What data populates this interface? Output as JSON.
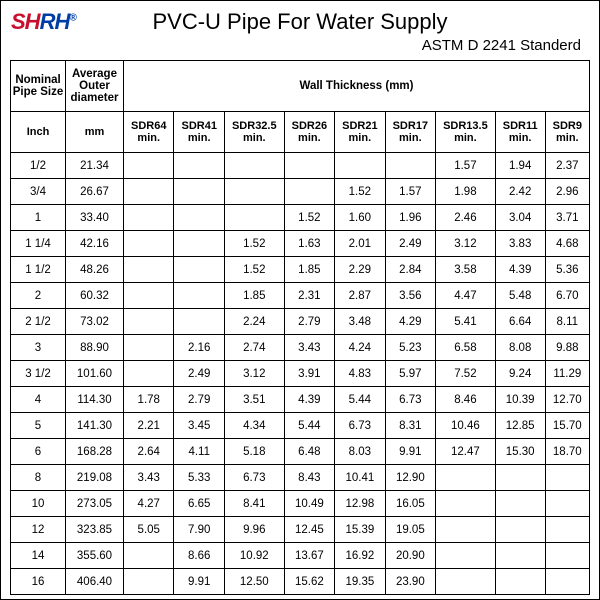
{
  "logo": {
    "text_left": "SH",
    "text_right": "RH",
    "reg": "®"
  },
  "title": "PVC-U Pipe For Water Supply",
  "subtitle": "ASTM D 2241 Standerd",
  "headers": {
    "nominal": "Nominal Pipe Size",
    "avg_outer": "Average Outer diameter",
    "wall": "Wall Thickness (mm)",
    "inch": "Inch",
    "mm": "mm",
    "sdr": [
      "SDR64 min.",
      "SDR41 min.",
      "SDR32.5 min.",
      "SDR26 min.",
      "SDR21 min.",
      "SDR17 min.",
      "SDR13.5 min.",
      "SDR11 min.",
      "SDR9 min."
    ]
  },
  "rows": [
    {
      "inch": "1/2",
      "mm": "21.34",
      "v": [
        "",
        "",
        "",
        "",
        "",
        "",
        "1.57",
        "1.94",
        "2.37"
      ]
    },
    {
      "inch": "3/4",
      "mm": "26.67",
      "v": [
        "",
        "",
        "",
        "",
        "1.52",
        "1.57",
        "1.98",
        "2.42",
        "2.96"
      ]
    },
    {
      "inch": "1",
      "mm": "33.40",
      "v": [
        "",
        "",
        "",
        "1.52",
        "1.60",
        "1.96",
        "2.46",
        "3.04",
        "3.71"
      ]
    },
    {
      "inch": "1 1/4",
      "mm": "42.16",
      "v": [
        "",
        "",
        "1.52",
        "1.63",
        "2.01",
        "2.49",
        "3.12",
        "3.83",
        "4.68"
      ]
    },
    {
      "inch": "1 1/2",
      "mm": "48.26",
      "v": [
        "",
        "",
        "1.52",
        "1.85",
        "2.29",
        "2.84",
        "3.58",
        "4.39",
        "5.36"
      ]
    },
    {
      "inch": "2",
      "mm": "60.32",
      "v": [
        "",
        "",
        "1.85",
        "2.31",
        "2.87",
        "3.56",
        "4.47",
        "5.48",
        "6.70"
      ]
    },
    {
      "inch": "2 1/2",
      "mm": "73.02",
      "v": [
        "",
        "",
        "2.24",
        "2.79",
        "3.48",
        "4.29",
        "5.41",
        "6.64",
        "8.11"
      ]
    },
    {
      "inch": "3",
      "mm": "88.90",
      "v": [
        "",
        "2.16",
        "2.74",
        "3.43",
        "4.24",
        "5.23",
        "6.58",
        "8.08",
        "9.88"
      ]
    },
    {
      "inch": "3 1/2",
      "mm": "101.60",
      "v": [
        "",
        "2.49",
        "3.12",
        "3.91",
        "4.83",
        "5.97",
        "7.52",
        "9.24",
        "11.29"
      ]
    },
    {
      "inch": "4",
      "mm": "114.30",
      "v": [
        "1.78",
        "2.79",
        "3.51",
        "4.39",
        "5.44",
        "6.73",
        "8.46",
        "10.39",
        "12.70"
      ]
    },
    {
      "inch": "5",
      "mm": "141.30",
      "v": [
        "2.21",
        "3.45",
        "4.34",
        "5.44",
        "6.73",
        "8.31",
        "10.46",
        "12.85",
        "15.70"
      ]
    },
    {
      "inch": "6",
      "mm": "168.28",
      "v": [
        "2.64",
        "4.11",
        "5.18",
        "6.48",
        "8.03",
        "9.91",
        "12.47",
        "15.30",
        "18.70"
      ]
    },
    {
      "inch": "8",
      "mm": "219.08",
      "v": [
        "3.43",
        "5.33",
        "6.73",
        "8.43",
        "10.41",
        "12.90",
        "",
        "",
        ""
      ]
    },
    {
      "inch": "10",
      "mm": "273.05",
      "v": [
        "4.27",
        "6.65",
        "8.41",
        "10.49",
        "12.98",
        "16.05",
        "",
        "",
        ""
      ]
    },
    {
      "inch": "12",
      "mm": "323.85",
      "v": [
        "5.05",
        "7.90",
        "9.96",
        "12.45",
        "15.39",
        "19.05",
        "",
        "",
        ""
      ]
    },
    {
      "inch": "14",
      "mm": "355.60",
      "v": [
        "",
        "8.66",
        "10.92",
        "13.67",
        "16.92",
        "20.90",
        "",
        "",
        ""
      ]
    },
    {
      "inch": "16",
      "mm": "406.40",
      "v": [
        "",
        "9.91",
        "12.50",
        "15.62",
        "19.35",
        "23.90",
        "",
        "",
        ""
      ]
    }
  ]
}
